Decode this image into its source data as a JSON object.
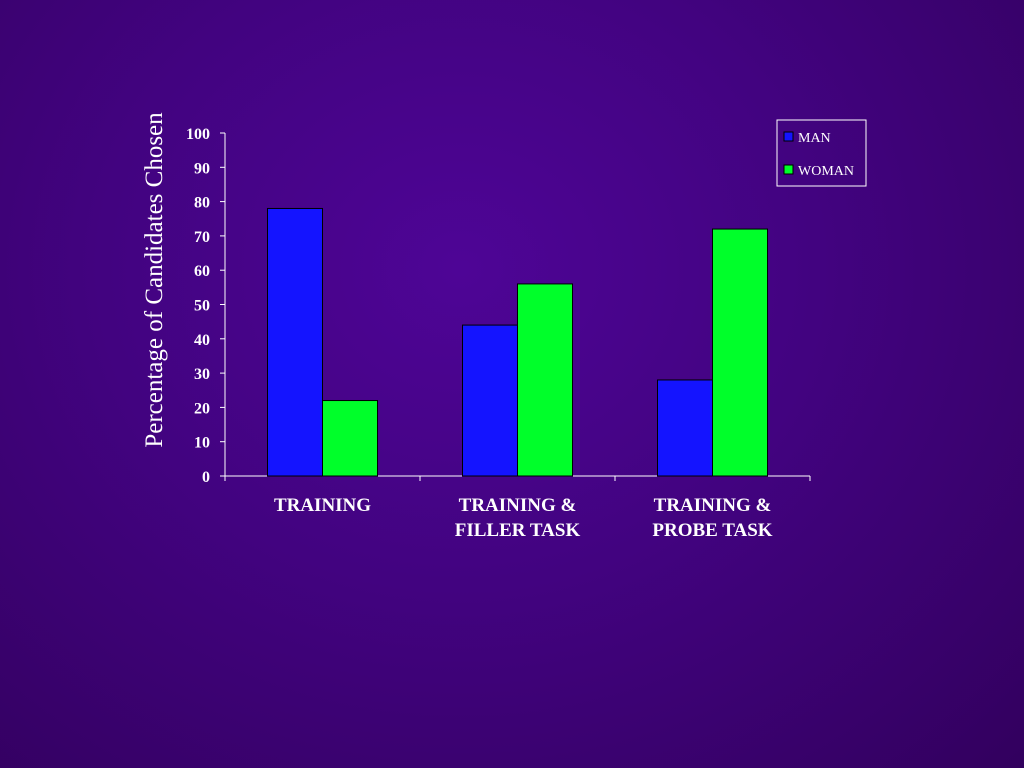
{
  "chart_data": {
    "type": "bar",
    "title": "",
    "xlabel": "",
    "ylabel": "Percentage of  Candidates Chosen",
    "ylim": [
      0,
      100
    ],
    "yticks": [
      0,
      10,
      20,
      30,
      40,
      50,
      60,
      70,
      80,
      90,
      100
    ],
    "grid": false,
    "legend_position": "top-right",
    "categories": [
      [
        "TRAINING"
      ],
      [
        "TRAINING &",
        "FILLER TASK"
      ],
      [
        "TRAINING &",
        "PROBE TASK"
      ]
    ],
    "series": [
      {
        "name": "MAN",
        "color": "#1414ff",
        "values": [
          78,
          44,
          28
        ]
      },
      {
        "name": "WOMAN",
        "color": "#00ff2a",
        "values": [
          22,
          56,
          72
        ]
      }
    ]
  }
}
